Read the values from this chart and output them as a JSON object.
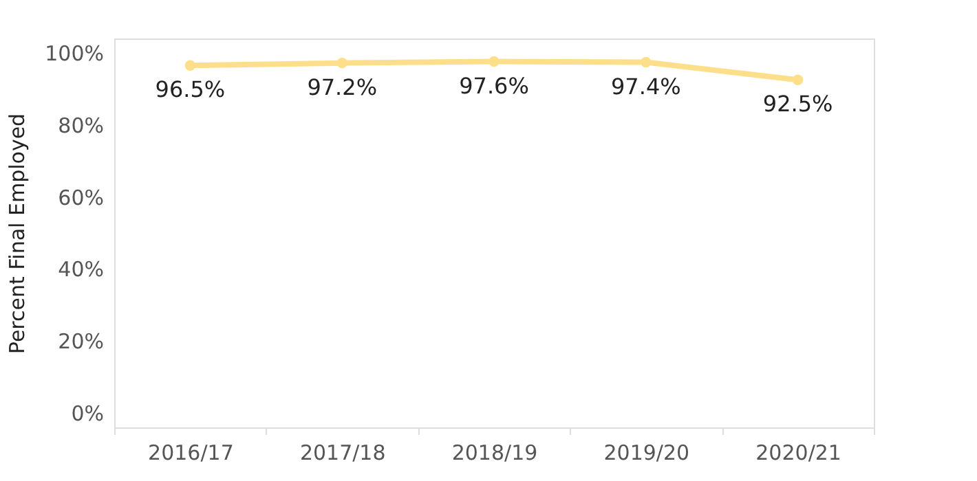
{
  "chart_data": {
    "type": "line",
    "ylabel": "Percent Final Employed",
    "categories": [
      "2016/17",
      "2017/18",
      "2018/19",
      "2019/20",
      "2020/21"
    ],
    "series": [
      {
        "color": "#fddf8b",
        "values": [
          96.5,
          97.2,
          97.6,
          97.4,
          92.5
        ]
      }
    ],
    "value_labels": [
      "96.5%",
      "97.2%",
      "97.6%",
      "97.4%",
      "92.5%"
    ],
    "ylim": [
      -4,
      104
    ],
    "yticks": [
      {
        "value": 0,
        "label": "0%"
      },
      {
        "value": 20,
        "label": "20%"
      },
      {
        "value": 40,
        "label": "40%"
      },
      {
        "value": 60,
        "label": "60%"
      },
      {
        "value": 80,
        "label": "80%"
      },
      {
        "value": 100,
        "label": "100%"
      }
    ],
    "grid": false,
    "marker": "circle",
    "line_style": "solid"
  }
}
